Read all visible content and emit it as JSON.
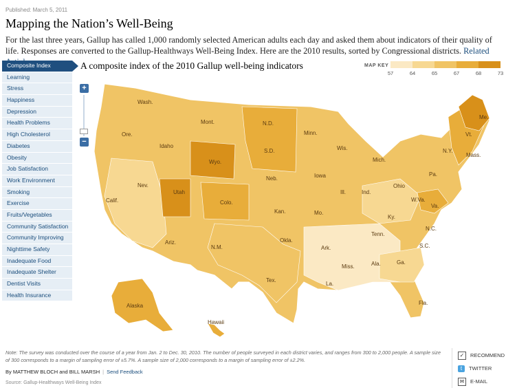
{
  "published": "Published: March 5, 2011",
  "headline": "Mapping the Nation’s Well-Being",
  "intro": {
    "text": "For the last three years, Gallup has called 1,000 randomly selected American adults each day and asked them about indicators of their quality of life. Responses are converted to the Gallup-Healthways Well-Being Index. Here are the 2010 results, sorted by Congressional districts.",
    "link": "Related Article »"
  },
  "sidebar": {
    "items": [
      {
        "label": "Composite Index",
        "active": true
      },
      {
        "label": "Learning"
      },
      {
        "label": "Stress"
      },
      {
        "label": "Happiness"
      },
      {
        "label": "Depression"
      },
      {
        "label": "Health Problems"
      },
      {
        "label": "High Cholesterol"
      },
      {
        "label": "Diabetes"
      },
      {
        "label": "Obesity"
      },
      {
        "label": "Job Satisfaction"
      },
      {
        "label": "Work Environment"
      },
      {
        "label": "Smoking"
      },
      {
        "label": "Exercise"
      },
      {
        "label": "Fruits/Vegetables"
      },
      {
        "label": "Community Satisfaction"
      },
      {
        "label": "Community Improving"
      },
      {
        "label": "Nighttime Safety"
      },
      {
        "label": "Inadequate Food"
      },
      {
        "label": "Inadequate Shelter"
      },
      {
        "label": "Dentist Visits"
      },
      {
        "label": "Health Insurance"
      }
    ]
  },
  "map": {
    "title": "A composite index of the 2010 Gallup well-being indicators",
    "zoom_in": "+",
    "zoom_out": "−",
    "key_label": "MAP KEY",
    "key_ticks": [
      "57",
      "64",
      "65",
      "67",
      "68",
      "73"
    ],
    "key_colors": [
      "#fbe9c4",
      "#f7d892",
      "#f0c465",
      "#e8ad3a",
      "#d8901a"
    ],
    "state_labels": [
      "Wash.",
      "Mont.",
      "N.D.",
      "Minn.",
      "Me.",
      "Ore.",
      "Idaho",
      "S.D.",
      "Wis.",
      "Mich.",
      "N.Y.",
      "Vt.",
      "Mass.",
      "Wyo.",
      "Iowa",
      "Pa.",
      "Nev.",
      "Neb.",
      "Ohio",
      "Utah",
      "Ill.",
      "Ind.",
      "W.Va.",
      "Va.",
      "Calif.",
      "Colo.",
      "Kan.",
      "Mo.",
      "Ky.",
      "N.C.",
      "Tenn.",
      "Okla.",
      "Ariz.",
      "N.M.",
      "Ark.",
      "S.C.",
      "Miss.",
      "Ala.",
      "Ga.",
      "Tex.",
      "La.",
      "Fla.",
      "Alaska",
      "Hawaii"
    ]
  },
  "footer": {
    "note": "Note: The survey was conducted over the course of a year from Jan. 2 to Dec. 30, 2010. The number of people surveyed in each district varies, and ranges from 300 to 2,000 people. A sample size of 300 corresponds to a margin of sampling error of ±5.7%. A sample size of 2,000 corresponds to a margin of sampling error of ±2.2%.",
    "byline": "By MATTHEW BLOCH and BILL MARSH",
    "feedback": "Send Feedback",
    "source": "Source: Gallup-Healthways Well-Being Index"
  },
  "share": {
    "recommend": "RECOMMEND",
    "twitter": "TWITTER",
    "email": "E-MAIL"
  }
}
